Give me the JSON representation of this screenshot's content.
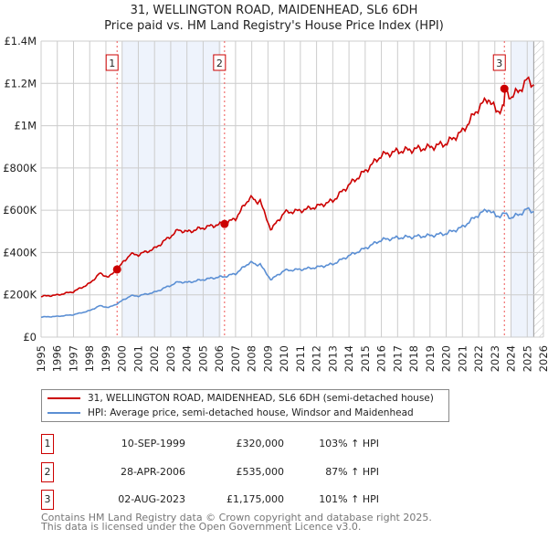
{
  "title": "31, WELLINGTON ROAD, MAIDENHEAD, SL6 6DH",
  "subtitle": "Price paid vs. HM Land Registry's House Price Index (HPI)",
  "legend": {
    "property": "31, WELLINGTON ROAD, MAIDENHEAD, SL6 6DH (semi-detached house)",
    "hpi": "HPI: Average price, semi-detached house, Windsor and Maidenhead"
  },
  "sales": [
    {
      "num": "1",
      "date": "10-SEP-1999",
      "price": "£320,000",
      "pct": "103% ↑ HPI",
      "year": 1999.69,
      "value": 320000
    },
    {
      "num": "2",
      "date": "28-APR-2006",
      "price": "£535,000",
      "pct": "87% ↑ HPI",
      "year": 2006.32,
      "value": 535000
    },
    {
      "num": "3",
      "date": "02-AUG-2023",
      "price": "£1,175,000",
      "pct": "101% ↑ HPI",
      "year": 2023.59,
      "value": 1175000
    }
  ],
  "footer": {
    "line1": "Contains HM Land Registry data © Crown copyright and database right 2025.",
    "line2": "This data is licensed under the Open Government Licence v3.0."
  },
  "colors": {
    "property": "#cc0000",
    "hpi": "#5b8fd4",
    "shade": "#eef3fc"
  },
  "chart_data": {
    "type": "line",
    "xlim": [
      1995,
      2026
    ],
    "ylim": [
      0,
      1400000
    ],
    "yticks": [
      0,
      200000,
      400000,
      600000,
      800000,
      1000000,
      1200000,
      1400000
    ],
    "ytick_labels": [
      "£0",
      "£200K",
      "£400K",
      "£600K",
      "£800K",
      "£1M",
      "£1.2M",
      "£1.4M"
    ],
    "xticks": [
      "1995",
      "1996",
      "1997",
      "1998",
      "1999",
      "2000",
      "2001",
      "2002",
      "2003",
      "2004",
      "2005",
      "2006",
      "2007",
      "2008",
      "2009",
      "2010",
      "2011",
      "2012",
      "2013",
      "2014",
      "2015",
      "2016",
      "2017",
      "2018",
      "2019",
      "2020",
      "2021",
      "2022",
      "2023",
      "2024",
      "2025",
      "2026"
    ],
    "shaded_ranges": [
      [
        2000,
        2006.1
      ],
      [
        2024,
        2025.4
      ]
    ],
    "forecast_hatch_from": 2025.4,
    "hpi_series": {
      "name": "HPI: Average price, semi-detached house, Windsor and Maidenhead",
      "x": [
        1995,
        1996,
        1997,
        1998,
        1998.6,
        1999.2,
        1999.69,
        2000.5,
        2001,
        2002,
        2003,
        2003.5,
        2004,
        2005,
        2006,
        2006.32,
        2007,
        2007.9,
        2008.3,
        2008.5,
        2008.8,
        2009.2,
        2010,
        2011,
        2012,
        2013,
        2014,
        2015,
        2016,
        2017,
        2018,
        2019,
        2020,
        2021,
        2022,
        2022.6,
        2023.1,
        2023.59,
        2024,
        2024.5,
        2025,
        2025.4
      ],
      "y": [
        95000,
        98000,
        106000,
        125000,
        148000,
        140000,
        158000,
        195000,
        195000,
        212000,
        245000,
        262000,
        258000,
        272000,
        284000,
        286000,
        300000,
        355000,
        340000,
        350000,
        310000,
        272000,
        315000,
        320000,
        330000,
        345000,
        385000,
        420000,
        460000,
        470000,
        475000,
        480000,
        490000,
        520000,
        580000,
        605000,
        570000,
        584000,
        565000,
        580000,
        605000,
        595000
      ]
    },
    "property_series": {
      "name": "31, WELLINGTON ROAD, MAIDENHEAD, SL6 6DH (semi-detached house)",
      "note_factors": [
        2.03,
        1.87,
        2.01
      ]
    }
  }
}
